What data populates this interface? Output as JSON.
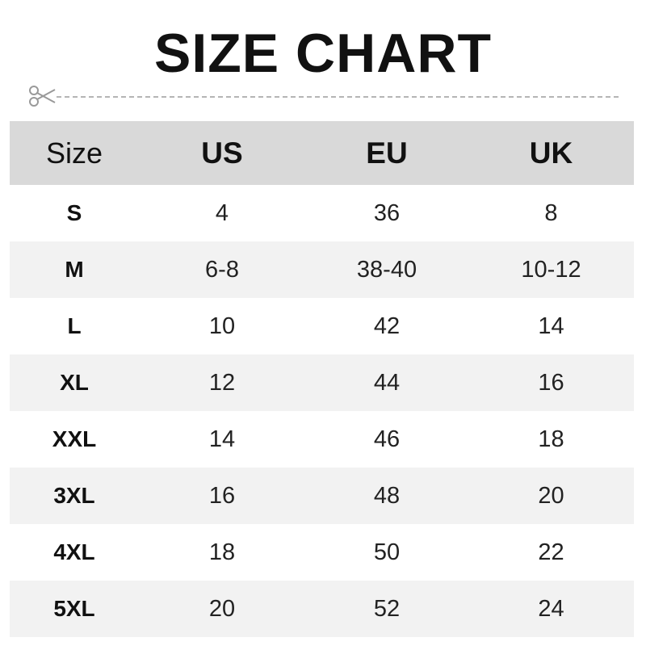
{
  "title": "SIZE CHART",
  "icons": {
    "cut_marker": "scissors-icon"
  },
  "colors": {
    "header_bg": "#d9d9d9",
    "alt_row_bg": "#f2f2f2",
    "dash": "#b5b5b5"
  },
  "table": {
    "headers": [
      "Size",
      "US",
      "EU",
      "UK"
    ],
    "rows": [
      [
        "S",
        "4",
        "36",
        "8"
      ],
      [
        "M",
        "6-8",
        "38-40",
        "10-12"
      ],
      [
        "L",
        "10",
        "42",
        "14"
      ],
      [
        "XL",
        "12",
        "44",
        "16"
      ],
      [
        "XXL",
        "14",
        "46",
        "18"
      ],
      [
        "3XL",
        "16",
        "48",
        "20"
      ],
      [
        "4XL",
        "18",
        "50",
        "22"
      ],
      [
        "5XL",
        "20",
        "52",
        "24"
      ]
    ]
  }
}
